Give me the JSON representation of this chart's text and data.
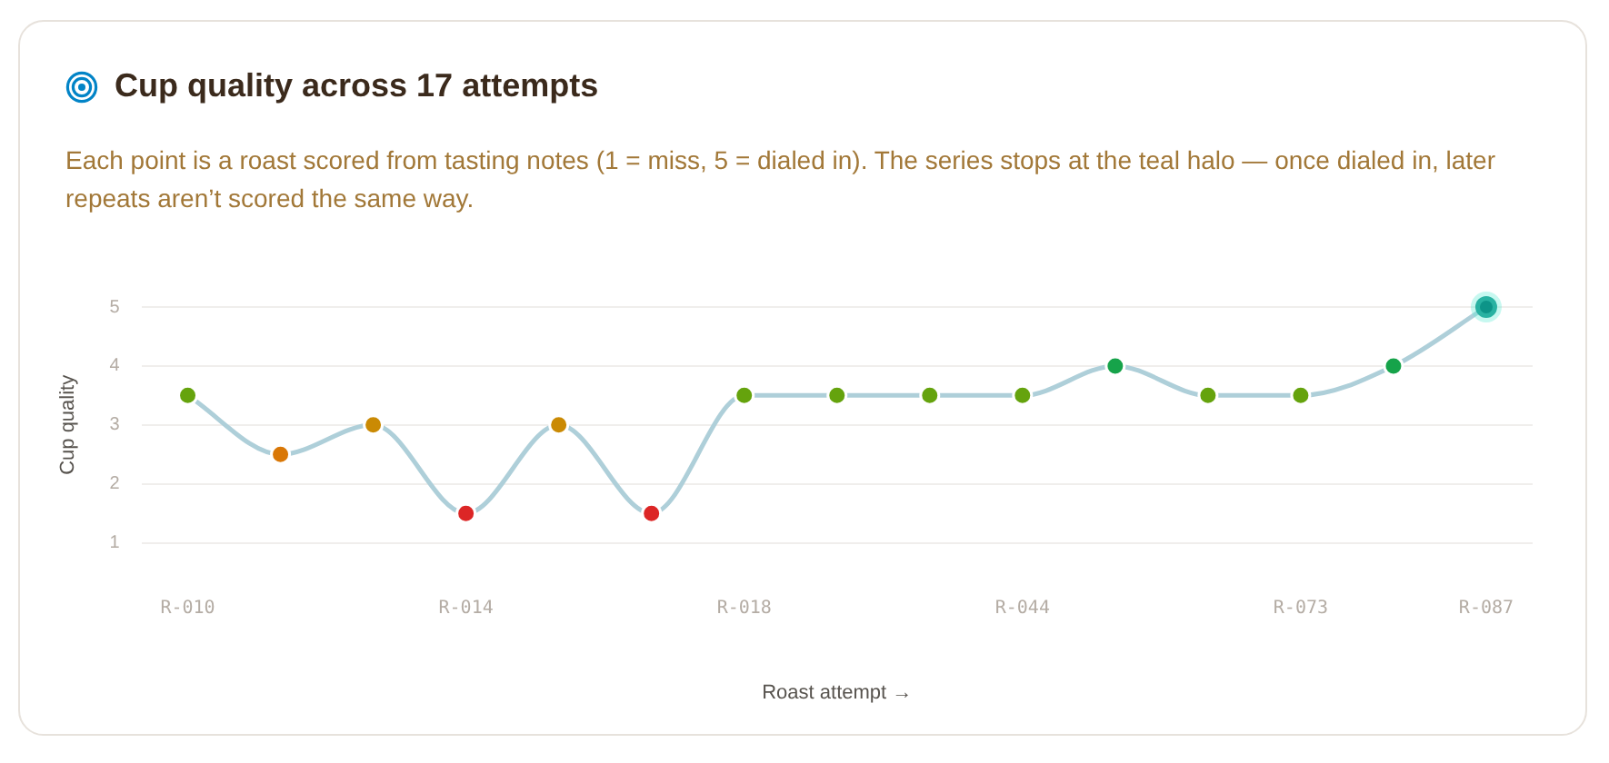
{
  "chart_data": {
    "type": "line",
    "title": "Cup quality across 17 attempts",
    "subtitle": "Each point is a roast scored from tasting notes (1 = miss, 5 = dialed in). The series stops at the teal halo — once dialed in, later repeats aren’t scored the same way.",
    "xlabel": "Roast attempt →",
    "ylabel": "Cup quality",
    "categories": [
      "R-010",
      null,
      null,
      "R-014",
      null,
      null,
      "R-018",
      null,
      null,
      "R-044",
      null,
      null,
      "R-073",
      null,
      "R-087"
    ],
    "series": [
      {
        "color": "#aecfd9",
        "colors": [
          "#65a30d",
          "#d97706",
          "#ca8a04",
          "#dc2626",
          "#ca8a04",
          "#dc2626",
          "#65a30d",
          "#65a30d",
          "#65a30d",
          "#65a30d",
          "#16a34a",
          "#65a30d",
          "#65a30d",
          "#16a34a",
          "#0d9488"
        ],
        "values": [
          3.5,
          2.5,
          3,
          1.5,
          3,
          1.5,
          3.5,
          3.5,
          3.5,
          3.5,
          4,
          3.5,
          3.5,
          4,
          5
        ]
      }
    ],
    "ylim": [
      1,
      5
    ],
    "yticks": [
      1,
      2,
      3,
      4,
      5
    ],
    "grid": "y",
    "legend": false,
    "marker": "circle",
    "line_style": "solid"
  }
}
